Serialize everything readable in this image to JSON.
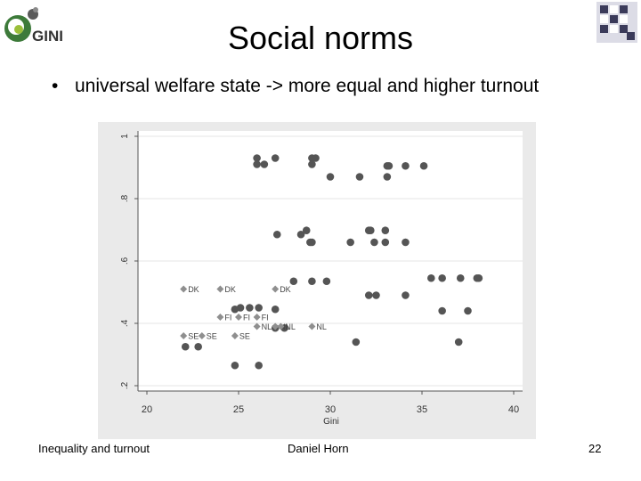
{
  "slide": {
    "title": "Social norms",
    "bullet": "universal welfare state -> more equal and higher turnout",
    "logo_text": "GINI",
    "footer_left": "Inequality and turnout",
    "footer_center": "Daniel Horn",
    "footer_right": "22"
  },
  "chart_data": {
    "type": "scatter",
    "title": "",
    "xlabel": "Gini",
    "ylabel": "",
    "xlim": [
      20,
      40
    ],
    "ylim": [
      0.2,
      1.0
    ],
    "xticks": [
      "20",
      "25",
      "30",
      "35",
      "40"
    ],
    "yticks": [
      ".2",
      ".4",
      ".6",
      ".8",
      "1"
    ],
    "grid": "horizontal",
    "colors": {
      "dots": "#555555",
      "diamonds": "#8f8f8f",
      "plot_bg": "#ffffff",
      "outer_bg": "#eaeaea"
    },
    "series": [
      {
        "marker": "circle",
        "points": [
          [
            26,
            0.93
          ],
          [
            26,
            0.91
          ],
          [
            26.4,
            0.91
          ],
          [
            27,
            0.93
          ],
          [
            29,
            0.93
          ],
          [
            29.2,
            0.93
          ],
          [
            29,
            0.91
          ],
          [
            33.1,
            0.905
          ],
          [
            33.2,
            0.905
          ],
          [
            34.1,
            0.905
          ],
          [
            35.1,
            0.905
          ],
          [
            30,
            0.87
          ],
          [
            31.6,
            0.87
          ],
          [
            33.1,
            0.87
          ],
          [
            27.1,
            0.685
          ],
          [
            28.4,
            0.685
          ],
          [
            28.7,
            0.698
          ],
          [
            29,
            0.66
          ],
          [
            28.9,
            0.66
          ],
          [
            32.1,
            0.698
          ],
          [
            32.2,
            0.698
          ],
          [
            33,
            0.698
          ],
          [
            31.1,
            0.66
          ],
          [
            32.4,
            0.66
          ],
          [
            33,
            0.66
          ],
          [
            34.1,
            0.66
          ],
          [
            35.5,
            0.545
          ],
          [
            36.1,
            0.545
          ],
          [
            37.1,
            0.545
          ],
          [
            38.1,
            0.545
          ],
          [
            38,
            0.545
          ],
          [
            28,
            0.535
          ],
          [
            29,
            0.535
          ],
          [
            29.8,
            0.535
          ],
          [
            32.1,
            0.49
          ],
          [
            32.5,
            0.49
          ],
          [
            34.1,
            0.49
          ],
          [
            25.1,
            0.45
          ],
          [
            24.8,
            0.445
          ],
          [
            25.6,
            0.45
          ],
          [
            26.1,
            0.45
          ],
          [
            27,
            0.445
          ],
          [
            36.1,
            0.44
          ],
          [
            37.5,
            0.44
          ],
          [
            27,
            0.385
          ],
          [
            27.5,
            0.385
          ],
          [
            31.4,
            0.34
          ],
          [
            37,
            0.34
          ],
          [
            22.1,
            0.325
          ],
          [
            22.8,
            0.325
          ],
          [
            24.8,
            0.265
          ],
          [
            26.1,
            0.265
          ]
        ]
      },
      {
        "marker": "diamond",
        "points": [
          {
            "x": 22,
            "y": 0.51,
            "label": "DK"
          },
          {
            "x": 24,
            "y": 0.51,
            "label": "DK"
          },
          {
            "x": 27,
            "y": 0.51,
            "label": "DK"
          },
          {
            "x": 24,
            "y": 0.42,
            "label": "FI"
          },
          {
            "x": 25,
            "y": 0.42,
            "label": "FI"
          },
          {
            "x": 26,
            "y": 0.42,
            "label": "FI"
          },
          {
            "x": 26,
            "y": 0.39,
            "label": "NL"
          },
          {
            "x": 27,
            "y": 0.39,
            "label": "NL"
          },
          {
            "x": 27.3,
            "y": 0.39,
            "label": "NL"
          },
          {
            "x": 29,
            "y": 0.39,
            "label": "NL"
          },
          {
            "x": 22,
            "y": 0.36,
            "label": "SE"
          },
          {
            "x": 23,
            "y": 0.36,
            "label": "SE"
          },
          {
            "x": 24.8,
            "y": 0.36,
            "label": "SE"
          }
        ]
      }
    ]
  }
}
